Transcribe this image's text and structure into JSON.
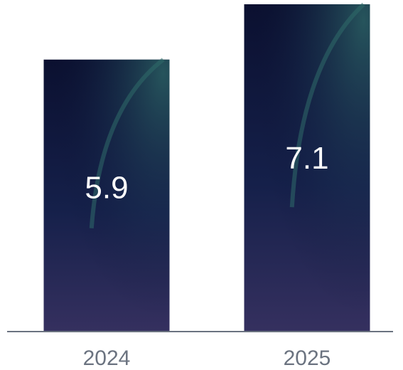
{
  "chart_data": {
    "type": "bar",
    "categories": [
      "2024",
      "2025"
    ],
    "values": [
      5.9,
      7.1
    ],
    "data_labels": [
      "5.9",
      "7.1"
    ],
    "title": "",
    "xlabel": "",
    "ylabel": "",
    "ylim": [
      0,
      7.1
    ],
    "grid": false,
    "legend": "none",
    "colors": {
      "bar_top": "#0b1030",
      "bar_mid": "#15204a",
      "bar_bottom": "#35305f",
      "bar_accent": "#2f6b6a",
      "axis": "#6b7380",
      "tick_text": "#6b7380",
      "value_text": "#ffffff"
    }
  }
}
